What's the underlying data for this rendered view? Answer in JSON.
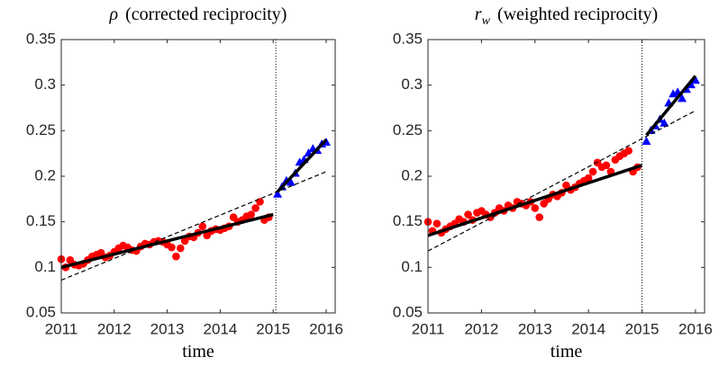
{
  "chart_data": [
    {
      "type": "scatter",
      "title_symbol": "ρ",
      "title_text": "(corrected reciprocity)",
      "xlabel": "time",
      "xlim": [
        2011,
        2016.17
      ],
      "xticks": [
        2011,
        2012,
        2013,
        2014,
        2015,
        2016
      ],
      "ylim": [
        0.05,
        0.35
      ],
      "yticks": [
        0.05,
        0.1,
        0.15,
        0.2,
        0.25,
        0.3,
        0.35
      ],
      "vline": 2015.05,
      "series": [
        {
          "marker": "circle",
          "color": "#ff0000",
          "x": [
            2011.0,
            2011.083,
            2011.167,
            2011.25,
            2011.333,
            2011.417,
            2011.5,
            2011.583,
            2011.667,
            2011.75,
            2011.833,
            2011.917,
            2012.0,
            2012.083,
            2012.167,
            2012.25,
            2012.333,
            2012.417,
            2012.5,
            2012.583,
            2012.667,
            2012.75,
            2012.833,
            2012.917,
            2013.0,
            2013.083,
            2013.167,
            2013.25,
            2013.333,
            2013.417,
            2013.5,
            2013.583,
            2013.667,
            2013.75,
            2013.833,
            2013.917,
            2014.0,
            2014.083,
            2014.167,
            2014.25,
            2014.333,
            2014.417,
            2014.5,
            2014.583,
            2014.667,
            2014.75,
            2014.833,
            2014.917
          ],
          "values": [
            0.109,
            0.1,
            0.108,
            0.103,
            0.102,
            0.104,
            0.108,
            0.112,
            0.114,
            0.116,
            0.111,
            0.113,
            0.117,
            0.121,
            0.124,
            0.122,
            0.119,
            0.118,
            0.123,
            0.126,
            0.125,
            0.128,
            0.129,
            0.128,
            0.125,
            0.122,
            0.112,
            0.121,
            0.129,
            0.134,
            0.133,
            0.138,
            0.145,
            0.135,
            0.14,
            0.142,
            0.141,
            0.143,
            0.145,
            0.155,
            0.15,
            0.152,
            0.156,
            0.158,
            0.165,
            0.172,
            0.152,
            0.155
          ]
        },
        {
          "marker": "triangle",
          "color": "#0000ff",
          "x": [
            2015.083,
            2015.167,
            2015.25,
            2015.333,
            2015.417,
            2015.5,
            2015.583,
            2015.667,
            2015.75,
            2015.833,
            2015.917,
            2016.0
          ],
          "values": [
            0.18,
            0.188,
            0.195,
            0.193,
            0.203,
            0.215,
            0.218,
            0.225,
            0.23,
            0.228,
            0.235,
            0.237
          ]
        }
      ],
      "lines": [
        {
          "style": "solid",
          "x": [
            2011.0,
            2015.0
          ],
          "values": [
            0.1,
            0.158
          ]
        },
        {
          "style": "solid",
          "x": [
            2015.083,
            2016.0
          ],
          "values": [
            0.183,
            0.24
          ]
        },
        {
          "style": "dashed",
          "x": [
            2011.0,
            2016.0
          ],
          "values": [
            0.086,
            0.205
          ]
        }
      ]
    },
    {
      "type": "scatter",
      "title_symbol": "r",
      "title_subscript": "w",
      "title_text": "(weighted reciprocity)",
      "xlabel": "time",
      "xlim": [
        2011,
        2016.17
      ],
      "xticks": [
        2011,
        2012,
        2013,
        2014,
        2015,
        2016
      ],
      "ylim": [
        0.05,
        0.35
      ],
      "yticks": [
        0.05,
        0.1,
        0.15,
        0.2,
        0.25,
        0.3,
        0.35
      ],
      "vline": 2015.0,
      "series": [
        {
          "marker": "circle",
          "color": "#ff0000",
          "x": [
            2011.0,
            2011.083,
            2011.167,
            2011.25,
            2011.333,
            2011.417,
            2011.5,
            2011.583,
            2011.667,
            2011.75,
            2011.833,
            2011.917,
            2012.0,
            2012.083,
            2012.167,
            2012.25,
            2012.333,
            2012.417,
            2012.5,
            2012.583,
            2012.667,
            2012.75,
            2012.833,
            2012.917,
            2013.0,
            2013.083,
            2013.167,
            2013.25,
            2013.333,
            2013.417,
            2013.5,
            2013.583,
            2013.667,
            2013.75,
            2013.833,
            2013.917,
            2014.0,
            2014.083,
            2014.167,
            2014.25,
            2014.333,
            2014.417,
            2014.5,
            2014.583,
            2014.667,
            2014.75,
            2014.833,
            2014.917
          ],
          "values": [
            0.15,
            0.14,
            0.148,
            0.138,
            0.142,
            0.145,
            0.148,
            0.153,
            0.15,
            0.158,
            0.152,
            0.16,
            0.162,
            0.158,
            0.155,
            0.16,
            0.165,
            0.162,
            0.168,
            0.165,
            0.172,
            0.17,
            0.168,
            0.172,
            0.165,
            0.155,
            0.17,
            0.175,
            0.18,
            0.178,
            0.182,
            0.19,
            0.185,
            0.188,
            0.192,
            0.195,
            0.198,
            0.205,
            0.215,
            0.21,
            0.212,
            0.205,
            0.218,
            0.222,
            0.225,
            0.228,
            0.205,
            0.21
          ]
        },
        {
          "marker": "triangle",
          "color": "#0000ff",
          "x": [
            2015.083,
            2015.167,
            2015.25,
            2015.333,
            2015.417,
            2015.5,
            2015.583,
            2015.667,
            2015.75,
            2015.833,
            2015.917,
            2016.0
          ],
          "values": [
            0.238,
            0.25,
            0.255,
            0.262,
            0.258,
            0.28,
            0.29,
            0.292,
            0.285,
            0.295,
            0.3,
            0.305
          ]
        }
      ],
      "lines": [
        {
          "style": "solid",
          "x": [
            2011.0,
            2015.0
          ],
          "values": [
            0.135,
            0.212
          ]
        },
        {
          "style": "solid",
          "x": [
            2015.083,
            2016.0
          ],
          "values": [
            0.245,
            0.31
          ]
        },
        {
          "style": "dashed",
          "x": [
            2011.0,
            2016.0
          ],
          "values": [
            0.118,
            0.272
          ]
        }
      ]
    }
  ]
}
